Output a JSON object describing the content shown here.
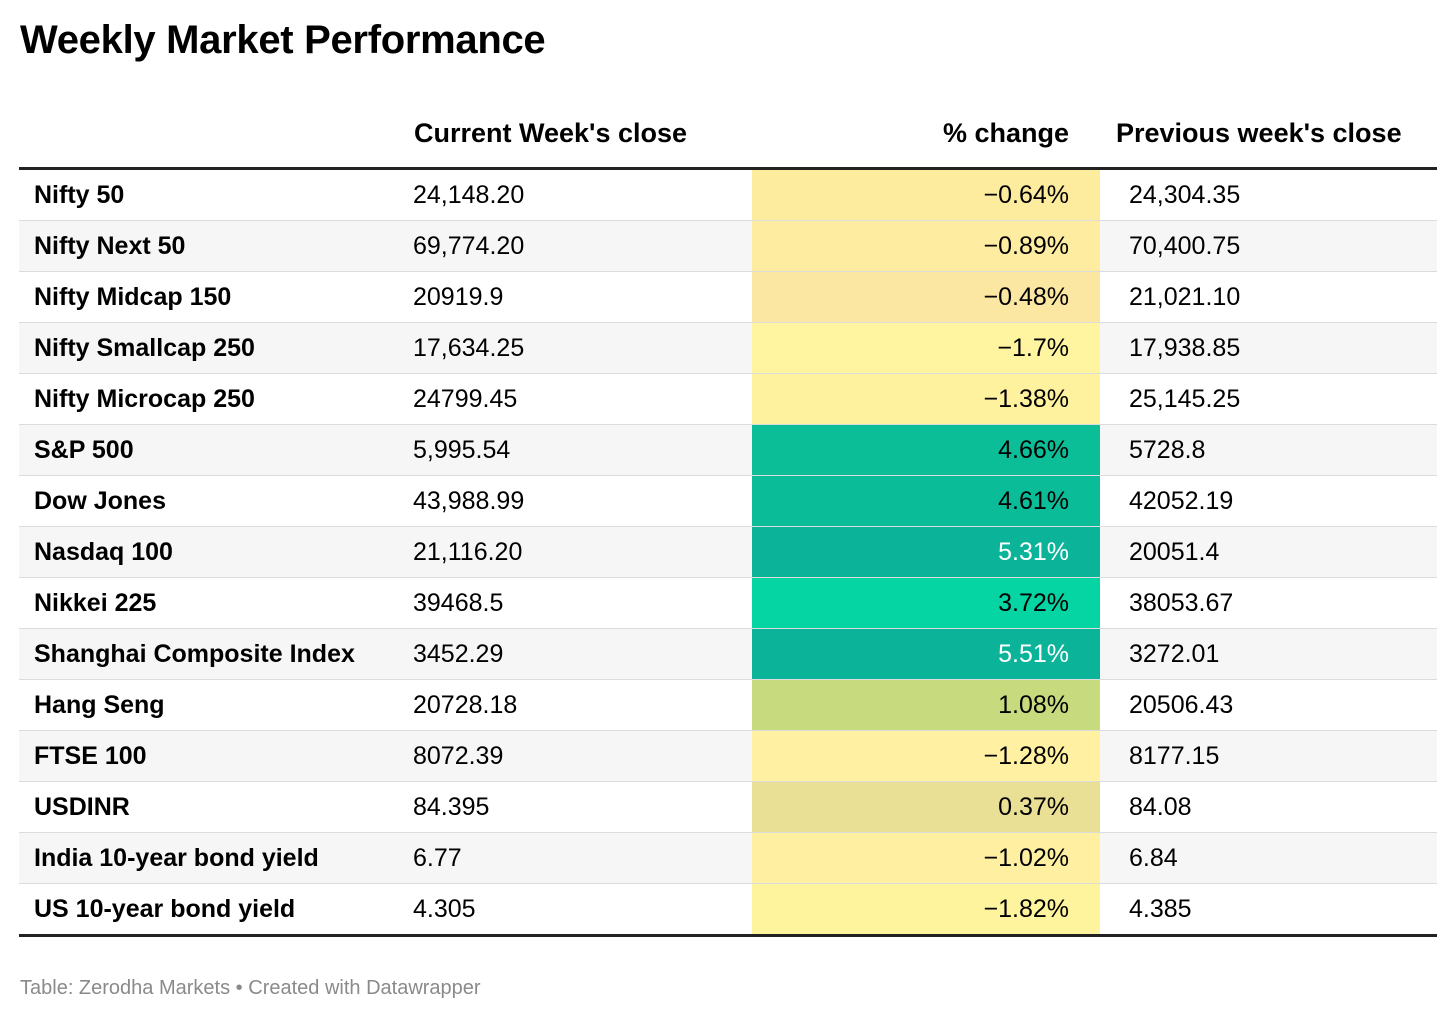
{
  "title": "Weekly Market Performance",
  "footer": {
    "source": "Table: Zerodha Markets",
    "separator": "•",
    "credit": "Created with Datawrapper"
  },
  "chart_data": {
    "type": "table",
    "title": "Weekly Market Performance",
    "columns": [
      "",
      "Current Week's close",
      "% change",
      "Previous week's close"
    ],
    "rows": [
      {
        "name": "Nifty 50",
        "current": "24,148.20",
        "change": "−0.64%",
        "change_value": -0.64,
        "previous": "24,304.35",
        "color": "#fdeb9e",
        "dark_text": true
      },
      {
        "name": "Nifty Next 50",
        "current": "69,774.20",
        "change": "−0.89%",
        "change_value": -0.89,
        "previous": "70,400.75",
        "color": "#feeda0",
        "dark_text": true
      },
      {
        "name": "Nifty Midcap 150",
        "current": "20919.9",
        "change": "−0.48%",
        "change_value": -0.48,
        "previous": "21,021.10",
        "color": "#fbe6a2",
        "dark_text": true
      },
      {
        "name": "Nifty Smallcap 250",
        "current": "17,634.25",
        "change": "−1.7%",
        "change_value": -1.7,
        "previous": "17,938.85",
        "color": "#fff5a0",
        "dark_text": true
      },
      {
        "name": "Nifty Microcap 250",
        "current": "24799.45",
        "change": "−1.38%",
        "change_value": -1.38,
        "previous": "25,145.25",
        "color": "#fff29f",
        "dark_text": true
      },
      {
        "name": "S&P 500",
        "current": "5,995.54",
        "change": "4.66%",
        "change_value": 4.66,
        "previous": "5728.8",
        "color": "#0bbe98",
        "dark_text": true
      },
      {
        "name": "Dow Jones",
        "current": "43,988.99",
        "change": "4.61%",
        "change_value": 4.61,
        "previous": "42052.19",
        "color": "#0bbc98",
        "dark_text": true
      },
      {
        "name": "Nasdaq 100",
        "current": "21,116.20",
        "change": "5.31%",
        "change_value": 5.31,
        "previous": "20051.4",
        "color": "#0bb399",
        "dark_text": false
      },
      {
        "name": "Nikkei 225",
        "current": "39468.5",
        "change": "3.72%",
        "change_value": 3.72,
        "previous": "38053.67",
        "color": "#05d4a3",
        "dark_text": true
      },
      {
        "name": "Shanghai Composite Index",
        "current": "3452.29",
        "change": "5.51%",
        "change_value": 5.51,
        "previous": "3272.01",
        "color": "#0bb499",
        "dark_text": false
      },
      {
        "name": "Hang Seng",
        "current": "20728.18",
        "change": "1.08%",
        "change_value": 1.08,
        "previous": "20506.43",
        "color": "#c7da7d",
        "dark_text": true
      },
      {
        "name": "FTSE 100",
        "current": "8072.39",
        "change": "−1.28%",
        "change_value": -1.28,
        "previous": "8177.15",
        "color": "#fff1a1",
        "dark_text": true
      },
      {
        "name": "USDINR",
        "current": "84.395",
        "change": "0.37%",
        "change_value": 0.37,
        "previous": "84.08",
        "color": "#e9df95",
        "dark_text": true
      },
      {
        "name": "India 10-year bond yield",
        "current": "6.77",
        "change": "−1.02%",
        "change_value": -1.02,
        "previous": "6.84",
        "color": "#fff0a1",
        "dark_text": true
      },
      {
        "name": "US 10-year bond yield",
        "current": "4.305",
        "change": "−1.82%",
        "change_value": -1.82,
        "previous": "4.385",
        "color": "#fff49e",
        "dark_text": true
      }
    ]
  }
}
